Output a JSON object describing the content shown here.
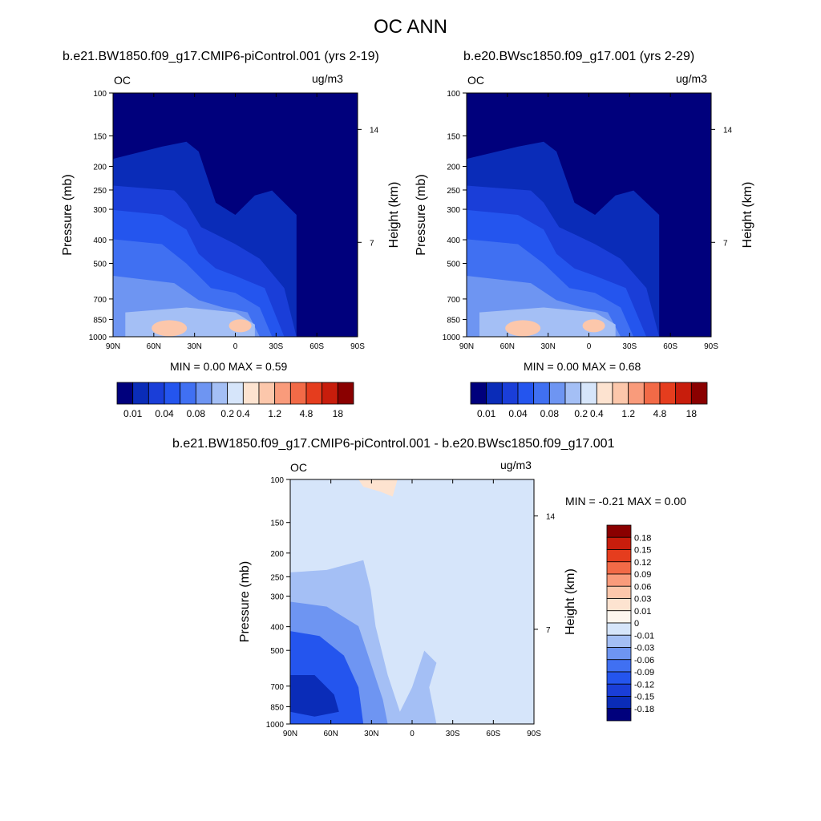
{
  "title": "OC ANN",
  "chart_data": [
    {
      "type": "heatmap",
      "title": "b.e21.BW1850.f09_g17.CMIP6-piControl.001 (yrs 2-19)",
      "left_label": "OC",
      "units": "ug/m3",
      "ylabel": "Pressure (mb)",
      "ylabel_right": "Height (km)",
      "xticks": [
        "90N",
        "60N",
        "30N",
        "0",
        "30S",
        "60S",
        "90S"
      ],
      "yticks": [
        "100",
        "150",
        "200",
        "250",
        "300",
        "400",
        "500",
        "700",
        "850",
        "1000"
      ],
      "yticks_right": [
        "14",
        "7"
      ],
      "ylim": [
        100,
        1000
      ],
      "log_scale_y": true,
      "stats": "MIN =   0.00  MAX =   0.59",
      "min": 0.0,
      "max": 0.59,
      "colorbar_labels": [
        "0.01",
        "0.04",
        "0.08",
        "0.2",
        "0.4",
        "1.2",
        "4.8",
        "18"
      ],
      "colorbar_colors": [
        "#00007c",
        "#0a2cb8",
        "#1a3ed8",
        "#2455ee",
        "#4070f2",
        "#6e95f2",
        "#a4bff5",
        "#d6e5fa",
        "#fde3d0",
        "#fcc7ab",
        "#f99b7b",
        "#f26a47",
        "#e53d1e",
        "#c81d0c",
        "#8a0000"
      ]
    },
    {
      "type": "heatmap",
      "title": "b.e20.BWsc1850.f09_g17.001 (yrs 2-29)",
      "left_label": "OC",
      "units": "ug/m3",
      "ylabel": "Pressure (mb)",
      "ylabel_right": "Height (km)",
      "xticks": [
        "90N",
        "60N",
        "30N",
        "0",
        "30S",
        "60S",
        "90S"
      ],
      "yticks": [
        "100",
        "150",
        "200",
        "250",
        "300",
        "400",
        "500",
        "700",
        "850",
        "1000"
      ],
      "yticks_right": [
        "14",
        "7"
      ],
      "ylim": [
        100,
        1000
      ],
      "log_scale_y": true,
      "stats": "MIN =   0.00  MAX =   0.68",
      "min": 0.0,
      "max": 0.68,
      "colorbar_labels": [
        "0.01",
        "0.04",
        "0.08",
        "0.2",
        "0.4",
        "1.2",
        "4.8",
        "18"
      ],
      "colorbar_colors": [
        "#00007c",
        "#0a2cb8",
        "#1a3ed8",
        "#2455ee",
        "#4070f2",
        "#6e95f2",
        "#a4bff5",
        "#d6e5fa",
        "#fde3d0",
        "#fcc7ab",
        "#f99b7b",
        "#f26a47",
        "#e53d1e",
        "#c81d0c",
        "#8a0000"
      ]
    },
    {
      "type": "heatmap",
      "title": "b.e21.BW1850.f09_g17.CMIP6-piControl.001 - b.e20.BWsc1850.f09_g17.001",
      "left_label": "OC",
      "units": "ug/m3",
      "ylabel": "Pressure (mb)",
      "ylabel_right": "Height (km)",
      "xticks": [
        "90N",
        "60N",
        "30N",
        "0",
        "30S",
        "60S",
        "90S"
      ],
      "yticks": [
        "100",
        "150",
        "200",
        "250",
        "300",
        "400",
        "500",
        "700",
        "850",
        "1000"
      ],
      "yticks_right": [
        "14",
        "7"
      ],
      "ylim": [
        100,
        1000
      ],
      "log_scale_y": true,
      "stats": "MIN =  -0.21  MAX =   0.00",
      "min": -0.21,
      "max": 0.0,
      "colorbar_labels": [
        "0.18",
        "0.15",
        "0.12",
        "0.09",
        "0.06",
        "0.03",
        "0.01",
        "0",
        "-0.01",
        "-0.03",
        "-0.06",
        "-0.09",
        "-0.12",
        "-0.15",
        "-0.18"
      ],
      "colorbar_colors": [
        "#8a0000",
        "#c81d0c",
        "#e53d1e",
        "#f26a47",
        "#f99b7b",
        "#fcc7ab",
        "#fde3d0",
        "#fdf5ee",
        "#d6e5fa",
        "#a4bff5",
        "#6e95f2",
        "#4070f2",
        "#2455ee",
        "#1a3ed8",
        "#0a2cb8",
        "#00007c"
      ]
    }
  ]
}
